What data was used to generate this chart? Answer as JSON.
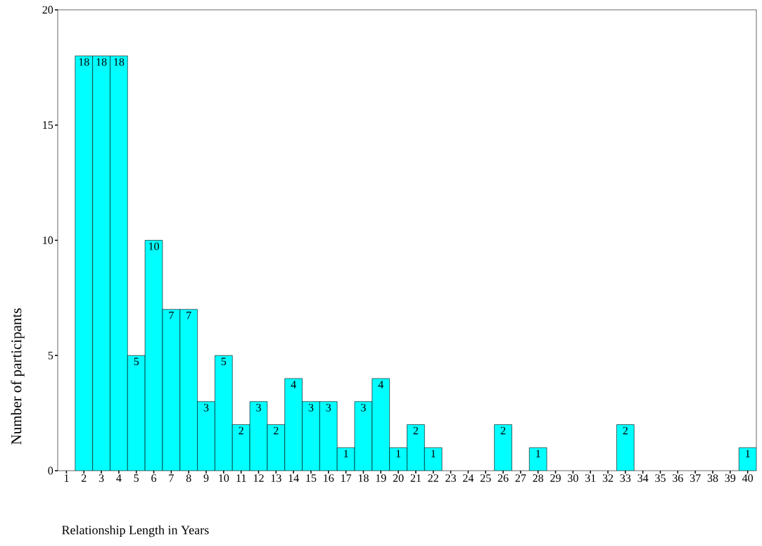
{
  "chart_data": {
    "type": "bar",
    "xlabel": "Relationship Length in Years",
    "ylabel": "Number of participants",
    "categories": [
      "1",
      "2",
      "3",
      "4",
      "5",
      "6",
      "7",
      "8",
      "9",
      "10",
      "11",
      "12",
      "13",
      "14",
      "15",
      "16",
      "17",
      "18",
      "19",
      "20",
      "21",
      "22",
      "23",
      "24",
      "25",
      "26",
      "27",
      "28",
      "29",
      "30",
      "31",
      "32",
      "33",
      "34",
      "35",
      "36",
      "37",
      "38",
      "39",
      "40"
    ],
    "values": [
      null,
      18,
      18,
      18,
      5,
      10,
      7,
      7,
      3,
      5,
      2,
      3,
      2,
      4,
      3,
      3,
      1,
      3,
      4,
      1,
      2,
      1,
      null,
      null,
      null,
      2,
      null,
      1,
      null,
      null,
      null,
      null,
      2,
      null,
      null,
      null,
      null,
      null,
      null,
      1
    ],
    "color": "#00ffff",
    "ylim": [
      0,
      20
    ],
    "yticks": [
      0,
      5,
      10,
      15,
      20
    ],
    "data_labels": true
  }
}
